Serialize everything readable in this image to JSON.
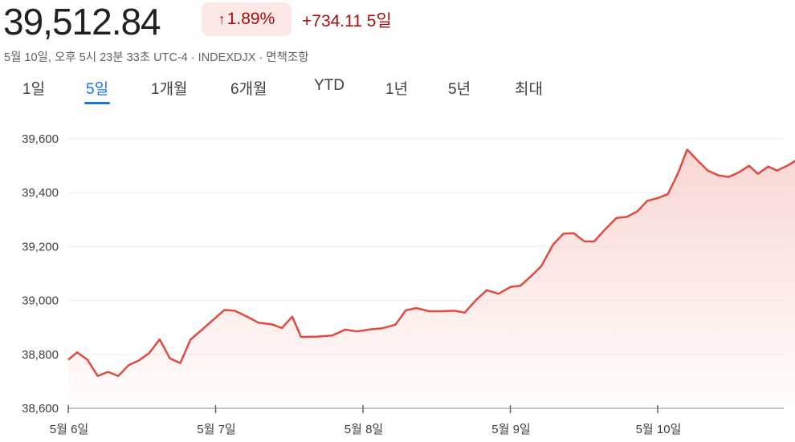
{
  "header": {
    "price": "39,512.84",
    "change_percent": "1.89%",
    "change_arrow_icon": "arrow-up-icon",
    "change_value": "+734.11 5일",
    "subline": "5월 10일, 오후 5시 23분 33초 UTC-4 · INDEXDJX · 면책조항"
  },
  "tabs": [
    {
      "label": "1일",
      "active": false
    },
    {
      "label": "5일",
      "active": true
    },
    {
      "label": "1개월",
      "active": false
    },
    {
      "label": "6개월",
      "active": false
    },
    {
      "label": "YTD",
      "active": false
    },
    {
      "label": "1년",
      "active": false
    },
    {
      "label": "5년",
      "active": false
    },
    {
      "label": "최대",
      "active": false
    }
  ],
  "colors": {
    "line": "#e04a3f",
    "fill": "#f8cfcb",
    "positive": "#a50e0e",
    "badge_bg": "#fce8e6",
    "accent": "#1a73e8"
  },
  "chart_data": {
    "type": "area",
    "title": "",
    "xlabel": "",
    "ylabel": "",
    "ylim": [
      38600,
      39600
    ],
    "yticks": [
      "39,600",
      "39,400",
      "39,200",
      "39,000",
      "38,800",
      "38,600"
    ],
    "ytick_values": [
      39600,
      39400,
      39200,
      39000,
      38800,
      38600
    ],
    "xticks": [
      "5월 6일",
      "5월 7일",
      "5월 8일",
      "5월 9일",
      "5월 10일"
    ],
    "xlim": [
      0,
      4.85
    ],
    "grid": true,
    "series": [
      {
        "values": [
          [
            0.0,
            38780
          ],
          [
            0.06,
            38808
          ],
          [
            0.13,
            38780
          ],
          [
            0.2,
            38720
          ],
          [
            0.27,
            38735
          ],
          [
            0.34,
            38720
          ],
          [
            0.41,
            38760
          ],
          [
            0.48,
            38778
          ],
          [
            0.55,
            38805
          ],
          [
            0.62,
            38856
          ],
          [
            0.69,
            38785
          ],
          [
            0.76,
            38768
          ],
          [
            0.83,
            38855
          ],
          [
            0.9,
            38888
          ],
          [
            0.97,
            38922
          ],
          [
            1.06,
            38965
          ],
          [
            1.13,
            38962
          ],
          [
            1.22,
            38938
          ],
          [
            1.29,
            38918
          ],
          [
            1.38,
            38912
          ],
          [
            1.45,
            38898
          ],
          [
            1.52,
            38940
          ],
          [
            1.58,
            38865
          ],
          [
            1.69,
            38866
          ],
          [
            1.79,
            38870
          ],
          [
            1.88,
            38892
          ],
          [
            1.96,
            38885
          ],
          [
            2.05,
            38893
          ],
          [
            2.13,
            38897
          ],
          [
            2.22,
            38910
          ],
          [
            2.29,
            38963
          ],
          [
            2.36,
            38972
          ],
          [
            2.45,
            38960
          ],
          [
            2.53,
            38960
          ],
          [
            2.62,
            38962
          ],
          [
            2.69,
            38955
          ],
          [
            2.77,
            39003
          ],
          [
            2.84,
            39038
          ],
          [
            2.92,
            39025
          ],
          [
            3.0,
            39050
          ],
          [
            3.07,
            39055
          ],
          [
            3.14,
            39090
          ],
          [
            3.21,
            39127
          ],
          [
            3.29,
            39207
          ],
          [
            3.36,
            39248
          ],
          [
            3.43,
            39250
          ],
          [
            3.5,
            39220
          ],
          [
            3.57,
            39219
          ],
          [
            3.64,
            39262
          ],
          [
            3.72,
            39306
          ],
          [
            3.79,
            39310
          ],
          [
            3.86,
            39330
          ],
          [
            3.93,
            39370
          ],
          [
            4.0,
            39380
          ],
          [
            4.07,
            39395
          ],
          [
            4.14,
            39475
          ],
          [
            4.2,
            39560
          ],
          [
            4.27,
            39520
          ],
          [
            4.34,
            39482
          ],
          [
            4.41,
            39465
          ],
          [
            4.48,
            39458
          ],
          [
            4.55,
            39475
          ],
          [
            4.62,
            39500
          ],
          [
            4.68,
            39470
          ],
          [
            4.75,
            39497
          ],
          [
            4.81,
            39482
          ],
          [
            4.89,
            39503
          ],
          [
            4.96,
            39528
          ],
          [
            5.03,
            39512
          ]
        ]
      }
    ],
    "last_point_marker": true
  }
}
